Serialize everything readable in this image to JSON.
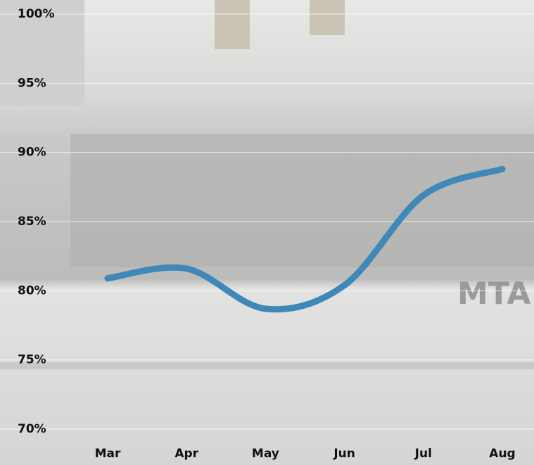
{
  "chart_data": {
    "type": "line",
    "categories": [
      "Mar",
      "Apr",
      "May",
      "Jun",
      "Jul",
      "Aug"
    ],
    "series": [
      {
        "color": "#3f88b8",
        "values": [
          80.9,
          81.6,
          78.7,
          80.4,
          86.9,
          88.8
        ]
      }
    ],
    "ylim": [
      70,
      100
    ],
    "yticks": [
      {
        "value": 70,
        "label": "70%"
      },
      {
        "value": 75,
        "label": "75%"
      },
      {
        "value": 80,
        "label": "80%"
      },
      {
        "value": 85,
        "label": "85%"
      },
      {
        "value": 90,
        "label": "90%"
      },
      {
        "value": 95,
        "label": "95%"
      },
      {
        "value": 100,
        "label": "100%"
      }
    ],
    "grid": true
  }
}
